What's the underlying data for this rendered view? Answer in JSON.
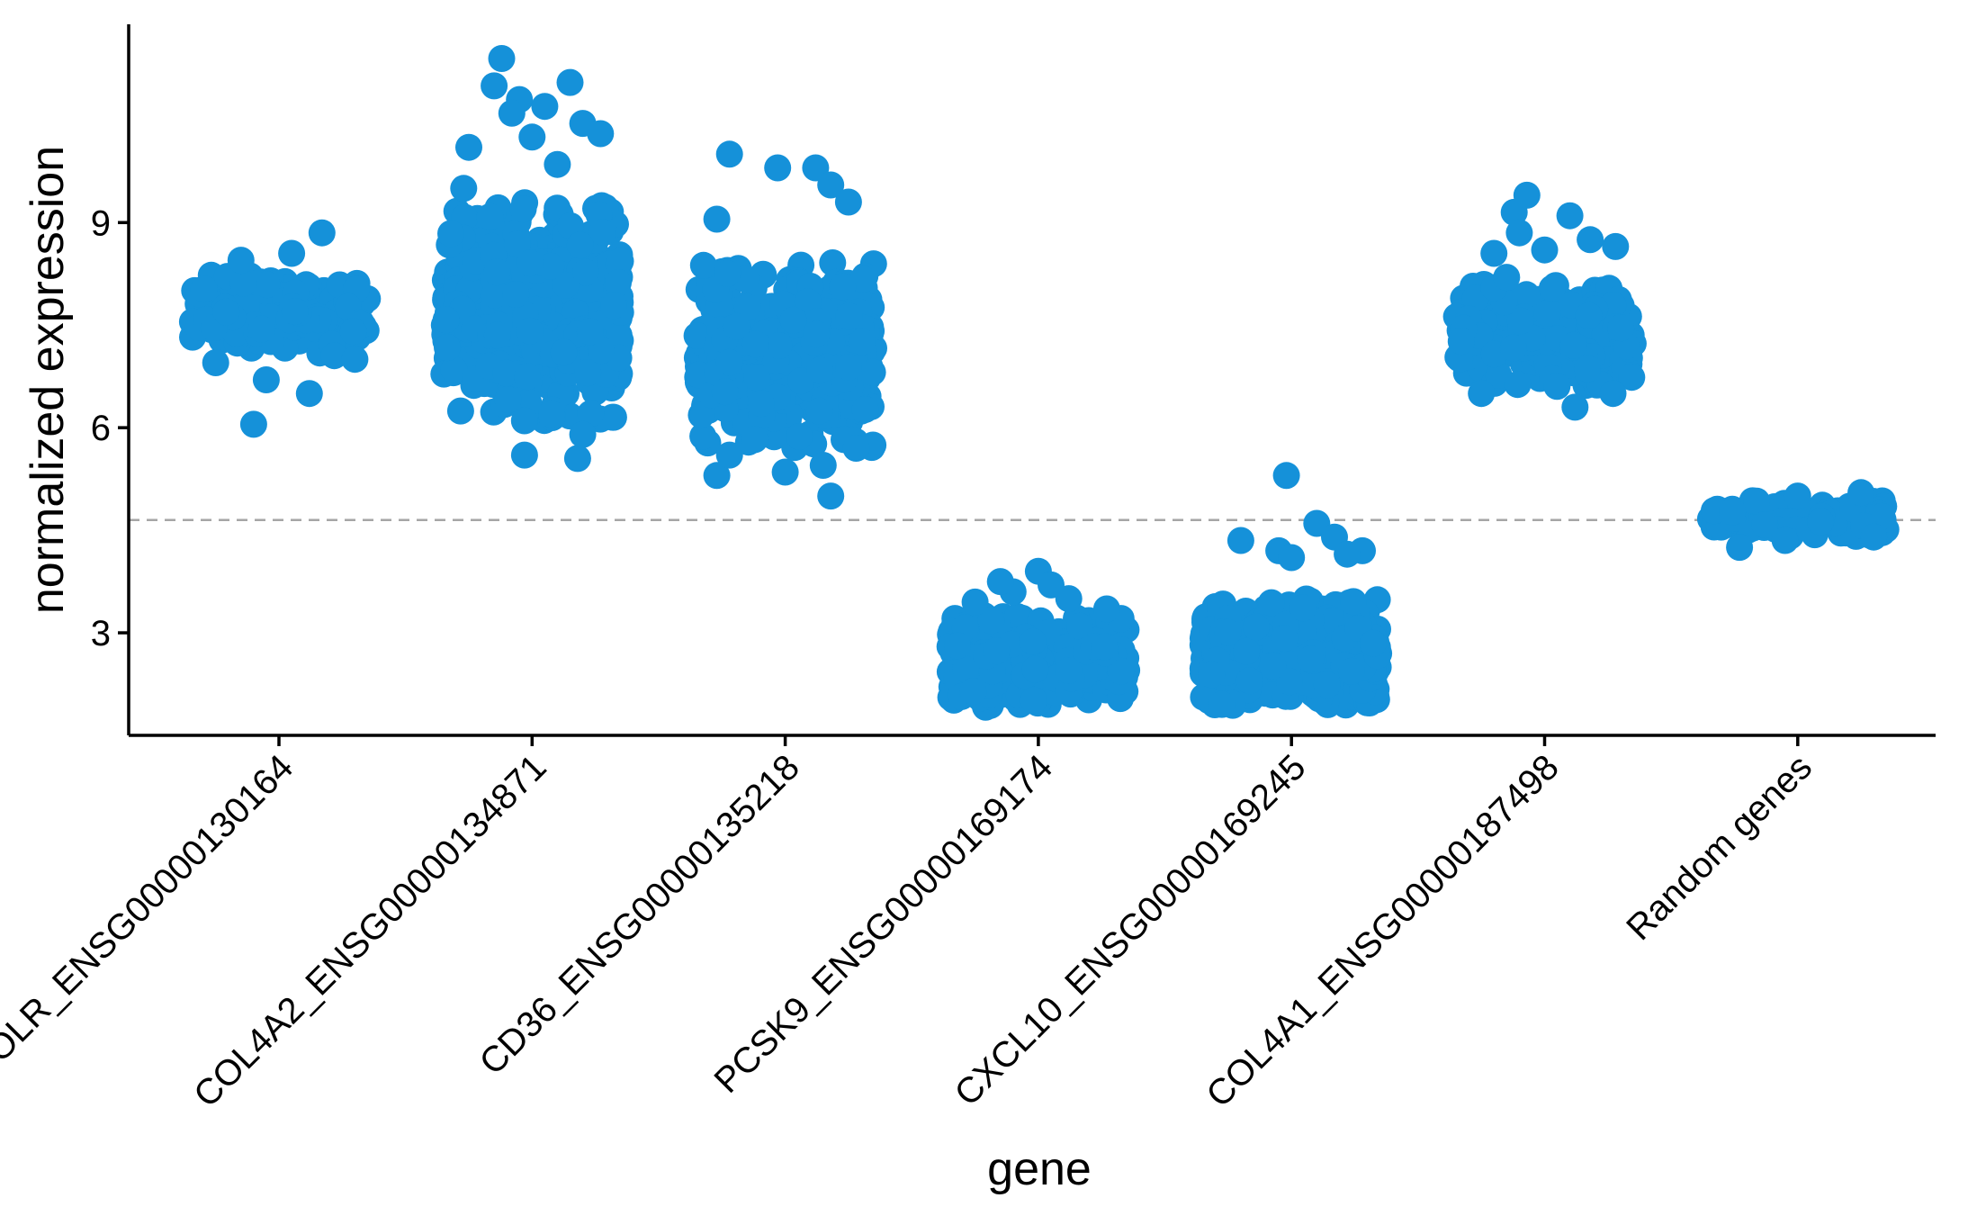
{
  "chart_data": {
    "type": "scatter",
    "subtype": "jitter strip plot",
    "title": "",
    "xlabel": "gene",
    "ylabel": "normalized expression",
    "ylim": [
      1.5,
      11.9
    ],
    "yticks": [
      3,
      6,
      9
    ],
    "point_color": "#1591d9",
    "reference_line": {
      "y": 4.65,
      "style": "dashed",
      "color": "#a6a6a6"
    },
    "categories": [
      "OLR_ENSG00000130164",
      "COL4A2_ENSG00000134871",
      "CD36_ENSG00000135218",
      "PCSK9_ENSG00000169174",
      "CXCL10_ENSG00000169245",
      "COL4A1_ENSG00000187498",
      "Random genes"
    ],
    "series": [
      {
        "name": "OLR_ENSG00000130164",
        "bulk": {
          "min": 7.05,
          "max": 8.25,
          "count": 160
        },
        "outliers": [
          [
            -0.1,
            6.05
          ],
          [
            0.12,
            6.5
          ],
          [
            0.17,
            8.85
          ],
          [
            -0.05,
            6.7
          ],
          [
            -0.25,
            6.95
          ],
          [
            0.3,
            7.0
          ],
          [
            0.05,
            8.55
          ],
          [
            -0.15,
            8.45
          ]
        ]
      },
      {
        "name": "COL4A2_ENSG00000134871",
        "bulk": {
          "min": 6.1,
          "max": 9.3,
          "count": 520
        },
        "outliers": [
          [
            -0.12,
            11.4
          ],
          [
            -0.15,
            11.0
          ],
          [
            -0.05,
            10.8
          ],
          [
            -0.08,
            10.6
          ],
          [
            0.05,
            10.7
          ],
          [
            0.15,
            11.05
          ],
          [
            0.2,
            10.45
          ],
          [
            0.27,
            10.3
          ],
          [
            -0.25,
            10.1
          ],
          [
            0.0,
            10.25
          ],
          [
            -0.03,
            5.6
          ],
          [
            0.18,
            5.55
          ],
          [
            -0.27,
            9.5
          ],
          [
            0.1,
            9.85
          ],
          [
            0.2,
            5.9
          ]
        ]
      },
      {
        "name": "CD36_ENSG00000135218",
        "bulk": {
          "min": 5.7,
          "max": 8.5,
          "count": 460
        },
        "outliers": [
          [
            -0.22,
            10.0
          ],
          [
            -0.03,
            9.8
          ],
          [
            0.12,
            9.8
          ],
          [
            0.18,
            9.55
          ],
          [
            0.25,
            9.3
          ],
          [
            -0.27,
            9.05
          ],
          [
            0.18,
            5.0
          ],
          [
            -0.27,
            5.3
          ],
          [
            -0.22,
            5.6
          ],
          [
            0.0,
            5.35
          ],
          [
            0.15,
            5.45
          ],
          [
            0.28,
            5.7
          ]
        ]
      },
      {
        "name": "PCSK9_ENSG00000169174",
        "bulk": {
          "min": 1.9,
          "max": 3.25,
          "count": 480
        },
        "outliers": [
          [
            0.0,
            3.9
          ],
          [
            -0.1,
            3.6
          ],
          [
            0.12,
            3.5
          ],
          [
            0.27,
            3.35
          ],
          [
            -0.25,
            3.45
          ],
          [
            -0.15,
            3.75
          ],
          [
            0.05,
            3.7
          ]
        ]
      },
      {
        "name": "CXCL10_ENSG00000169245",
        "bulk": {
          "min": 1.9,
          "max": 3.5,
          "count": 520
        },
        "outliers": [
          [
            -0.02,
            5.3
          ],
          [
            0.1,
            4.6
          ],
          [
            0.17,
            4.4
          ],
          [
            -0.2,
            4.35
          ],
          [
            -0.05,
            4.2
          ],
          [
            0.28,
            4.2
          ],
          [
            0.22,
            4.15
          ],
          [
            0.0,
            4.1
          ]
        ]
      },
      {
        "name": "COL4A1_ENSG00000187498",
        "bulk": {
          "min": 6.6,
          "max": 8.1,
          "count": 260
        },
        "outliers": [
          [
            -0.12,
            9.15
          ],
          [
            -0.07,
            9.4
          ],
          [
            -0.2,
            8.55
          ],
          [
            -0.2,
            8.05
          ],
          [
            -0.1,
            8.85
          ],
          [
            0.1,
            9.1
          ],
          [
            0.18,
            8.75
          ],
          [
            0.28,
            8.65
          ],
          [
            0.27,
            6.5
          ],
          [
            0.12,
            6.3
          ],
          [
            -0.25,
            6.5
          ],
          [
            0.0,
            8.6
          ],
          [
            -0.15,
            8.2
          ]
        ]
      },
      {
        "name": "Random genes",
        "bulk": {
          "min": 4.4,
          "max": 4.95,
          "count": 140
        },
        "outliers": [
          [
            -0.23,
            4.25
          ],
          [
            0.3,
            4.4
          ],
          [
            -0.05,
            4.35
          ],
          [
            0.25,
            5.05
          ],
          [
            0.0,
            5.0
          ]
        ]
      }
    ]
  }
}
